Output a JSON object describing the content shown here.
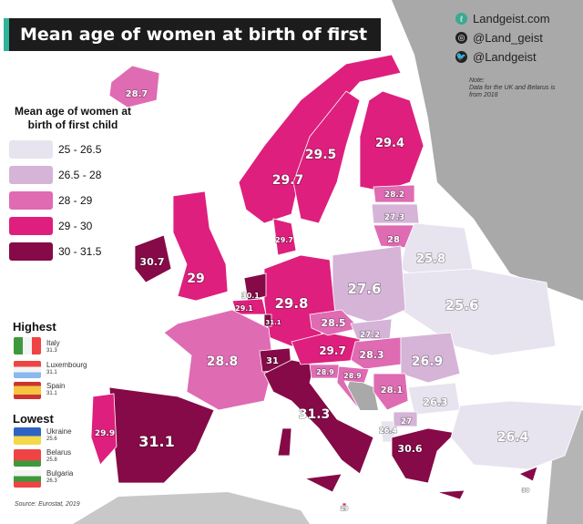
{
  "title": "Mean age of women at birth of first child",
  "branding": {
    "website": "Landgeist.com",
    "instagram": "@Land_geist",
    "twitter": "@Landgeist",
    "icons": [
      "landgeist-logo-icon",
      "instagram-icon",
      "twitter-icon"
    ]
  },
  "note": {
    "heading": "Note:",
    "text": "Data for the UK and Belarus is from 2018"
  },
  "legend": {
    "title": "Mean age of women at birth of first child",
    "bins": [
      {
        "label": "25  - 26.5",
        "color": "#e7e4ef"
      },
      {
        "label": "26.5 - 28",
        "color": "#d5b4d8"
      },
      {
        "label": "28  -  29",
        "color": "#df6bb3"
      },
      {
        "label": "29  -  30",
        "color": "#de1f7d"
      },
      {
        "label": "30  - 31.5",
        "color": "#850a47"
      }
    ]
  },
  "highest": {
    "heading": "Highest",
    "items": [
      {
        "country": "Italy",
        "value": "31.3"
      },
      {
        "country": "Luxembourg",
        "value": "31.1"
      },
      {
        "country": "Spain",
        "value": "31.1"
      }
    ]
  },
  "lowest": {
    "heading": "Lowest",
    "items": [
      {
        "country": "Ukraine",
        "value": "25.6"
      },
      {
        "country": "Belarus",
        "value": "25.8"
      },
      {
        "country": "Bulgaria",
        "value": "26.3"
      }
    ]
  },
  "source": "Source: Eurostat, 2019",
  "no_data_color": "#a9a9a9",
  "countries": [
    {
      "name": "Iceland",
      "value": "28.7"
    },
    {
      "name": "Norway",
      "value": "29.7"
    },
    {
      "name": "Sweden",
      "value": "29.5"
    },
    {
      "name": "Finland",
      "value": "29.4"
    },
    {
      "name": "Estonia",
      "value": "28.2"
    },
    {
      "name": "Latvia",
      "value": "27.3"
    },
    {
      "name": "Lithuania",
      "value": "28"
    },
    {
      "name": "Belarus",
      "value": "25.8"
    },
    {
      "name": "Ukraine",
      "value": "25.6"
    },
    {
      "name": "Poland",
      "value": "27.6"
    },
    {
      "name": "Germany",
      "value": "29.8"
    },
    {
      "name": "Denmark",
      "value": "29.7"
    },
    {
      "name": "Netherlands",
      "value": "30.1"
    },
    {
      "name": "Belgium",
      "value": "29.1"
    },
    {
      "name": "Luxembourg",
      "value": "31.1"
    },
    {
      "name": "Ireland",
      "value": "30.7"
    },
    {
      "name": "United Kingdom",
      "value": "29"
    },
    {
      "name": "France",
      "value": "28.8"
    },
    {
      "name": "Spain",
      "value": "31.1"
    },
    {
      "name": "Portugal",
      "value": "29.9"
    },
    {
      "name": "Switzerland",
      "value": "31"
    },
    {
      "name": "Italy",
      "value": "31.3"
    },
    {
      "name": "Austria",
      "value": "29.7"
    },
    {
      "name": "Czechia",
      "value": "28.5"
    },
    {
      "name": "Slovakia",
      "value": "27.2"
    },
    {
      "name": "Hungary",
      "value": "28.3"
    },
    {
      "name": "Slovenia",
      "value": "28.9"
    },
    {
      "name": "Croatia",
      "value": "28.9"
    },
    {
      "name": "Romania",
      "value": "26.9"
    },
    {
      "name": "Serbia",
      "value": "28.1"
    },
    {
      "name": "Bulgaria",
      "value": "26.3"
    },
    {
      "name": "North Macedonia",
      "value": "27"
    },
    {
      "name": "Albania",
      "value": "26.4"
    },
    {
      "name": "Greece",
      "value": "30.6"
    },
    {
      "name": "Turkey",
      "value": "26.4"
    },
    {
      "name": "Malta",
      "value": "29"
    },
    {
      "name": "Cyprus",
      "value": "30"
    }
  ]
}
